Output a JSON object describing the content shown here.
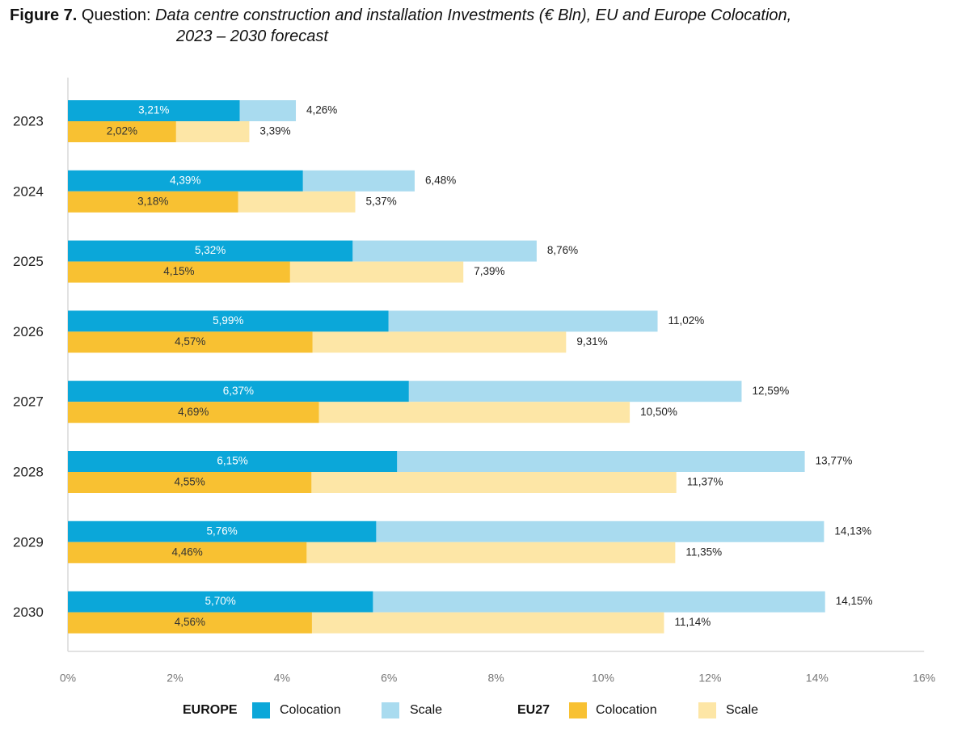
{
  "title": {
    "figure": "Figure 7.",
    "lead": "Question:",
    "text_line1": "Data centre construction and installation Investments (€ Bln), EU and Europe Colocation,",
    "text_line2": "2023 – 2030 forecast"
  },
  "colors": {
    "europe_colocation": "#0ba7d9",
    "europe_scale": "#a9dbef",
    "eu27_colocation": "#f8c132",
    "eu27_scale": "#fde6a6",
    "axis": "#d9d9d9"
  },
  "legend": {
    "europe_label": "EUROPE",
    "europe_colocation": "Colocation",
    "europe_scale": "Scale",
    "eu27_label": "EU27",
    "eu27_colocation": "Colocation",
    "eu27_scale": "Scale"
  },
  "chart_data": {
    "type": "bar",
    "orientation": "horizontal",
    "stacked": true,
    "categories": [
      "2023",
      "2024",
      "2025",
      "2026",
      "2027",
      "2028",
      "2029",
      "2030"
    ],
    "xlim": [
      0,
      16
    ],
    "xticks": [
      "0%",
      "2%",
      "4%",
      "6%",
      "8%",
      "10%",
      "12%",
      "14%",
      "16%"
    ],
    "grid": false,
    "legend_position": "bottom",
    "series": [
      {
        "group": "EUROPE",
        "name": "Colocation",
        "values": [
          3.21,
          4.39,
          5.32,
          5.99,
          6.37,
          6.15,
          5.76,
          5.7
        ],
        "labels": [
          "3,21%",
          "4,39%",
          "5,32%",
          "5,99%",
          "6,37%",
          "6,15%",
          "5,76%",
          "5,70%"
        ]
      },
      {
        "group": "EUROPE",
        "name": "Scale",
        "totals": [
          4.26,
          6.48,
          8.76,
          11.02,
          12.59,
          13.77,
          14.13,
          14.15
        ],
        "labels": [
          "4,26%",
          "6,48%",
          "8,76%",
          "11,02%",
          "12,59%",
          "13,77%",
          "14,13%",
          "14,15%"
        ]
      },
      {
        "group": "EU27",
        "name": "Colocation",
        "values": [
          2.02,
          3.18,
          4.15,
          4.57,
          4.69,
          4.55,
          4.46,
          4.56
        ],
        "labels": [
          "2,02%",
          "3,18%",
          "4,15%",
          "4,57%",
          "4,69%",
          "4,55%",
          "4,46%",
          "4,56%"
        ]
      },
      {
        "group": "EU27",
        "name": "Scale",
        "totals": [
          3.39,
          5.37,
          7.39,
          9.31,
          10.5,
          11.37,
          11.35,
          11.14
        ],
        "labels": [
          "3,39%",
          "5,37%",
          "7,39%",
          "9,31%",
          "10,50%",
          "11,37%",
          "11,35%",
          "11,14%"
        ]
      }
    ]
  }
}
